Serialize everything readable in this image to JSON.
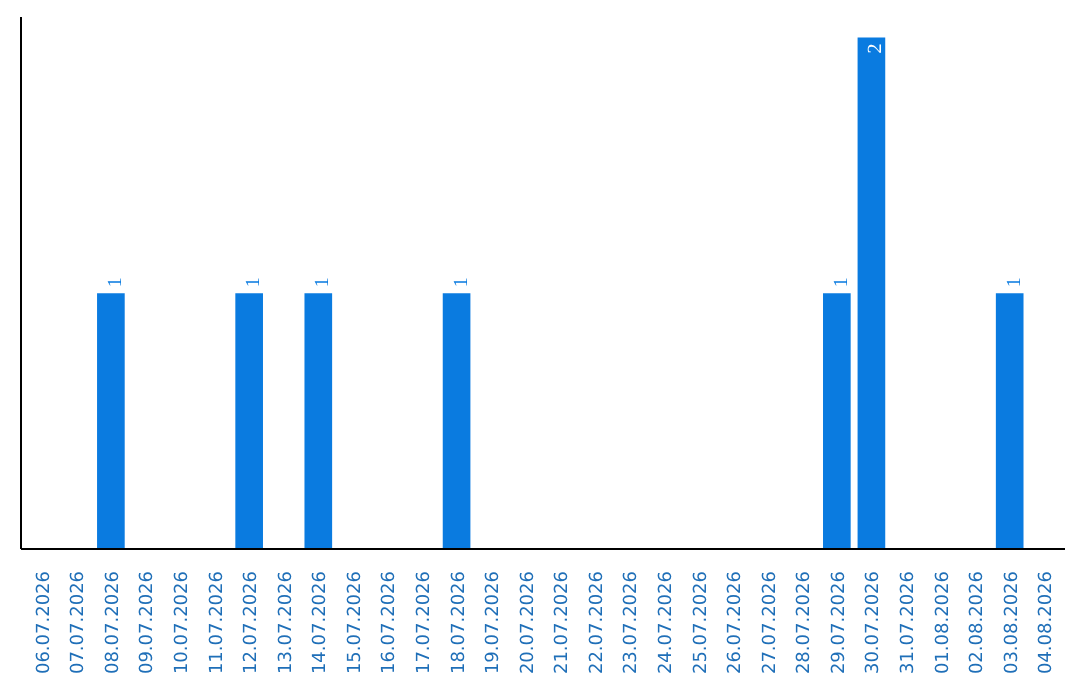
{
  "chart_data": {
    "type": "bar",
    "categories": [
      "06.07.2026",
      "07.07.2026",
      "08.07.2026",
      "09.07.2026",
      "10.07.2026",
      "11.07.2026",
      "12.07.2026",
      "13.07.2026",
      "14.07.2026",
      "15.07.2026",
      "16.07.2026",
      "17.07.2026",
      "18.07.2026",
      "19.07.2026",
      "20.07.2026",
      "21.07.2026",
      "22.07.2026",
      "23.07.2026",
      "24.07.2026",
      "25.07.2026",
      "26.07.2026",
      "27.07.2026",
      "28.07.2026",
      "29.07.2026",
      "30.07.2026",
      "31.07.2026",
      "01.08.2026",
      "02.08.2026",
      "03.08.2026",
      "04.08.2026"
    ],
    "values": [
      0,
      0,
      1,
      0,
      0,
      0,
      1,
      0,
      1,
      0,
      0,
      0,
      1,
      0,
      0,
      0,
      0,
      0,
      0,
      0,
      0,
      0,
      0,
      1,
      2,
      0,
      0,
      0,
      1,
      0
    ],
    "value_labels": [
      null,
      null,
      "1",
      null,
      null,
      null,
      "1",
      null,
      "1",
      null,
      null,
      null,
      "1",
      null,
      null,
      null,
      null,
      null,
      null,
      null,
      null,
      null,
      null,
      "1",
      "2",
      null,
      null,
      null,
      "1",
      null
    ],
    "color": "#0a7be0",
    "grid": false,
    "tick_labels": "x"
  }
}
